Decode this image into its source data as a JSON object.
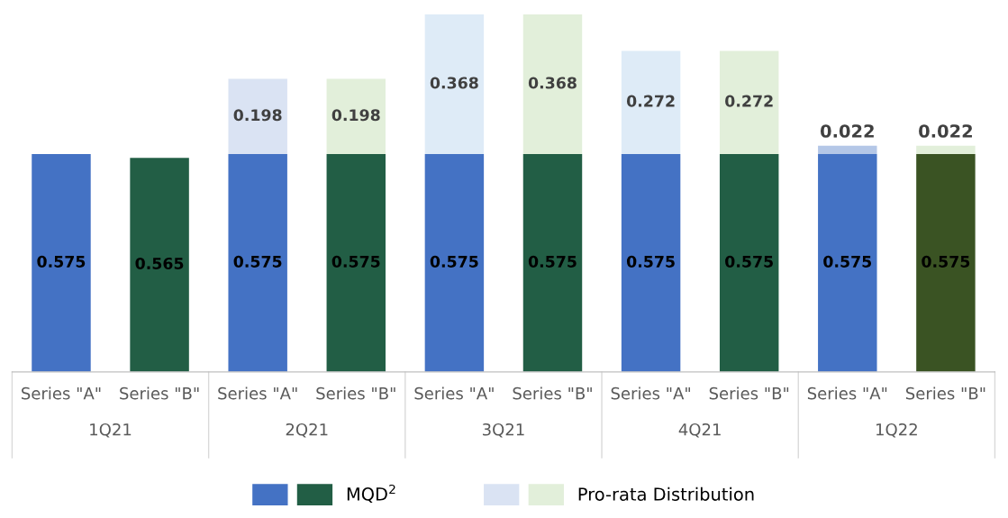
{
  "chart_data": {
    "type": "bar",
    "stacked": true,
    "data_labels": true,
    "legend": "bottom",
    "grid": false,
    "categories": [
      "Series \"A\"",
      "Series \"B\"",
      "Series \"A\"",
      "Series \"B\"",
      "Series \"A\"",
      "Series \"B\"",
      "Series \"A\"",
      "Series \"B\"",
      "Series \"A\"",
      "Series \"B\""
    ],
    "annotations": [
      "1Q21",
      "2Q21",
      "3Q21",
      "4Q21",
      "1Q22"
    ],
    "series": [
      {
        "name": "MQD$^{2}$",
        "colors": [
          "#4472c4",
          "#225e45",
          "#4472c4",
          "#225e45",
          "#4472c4",
          "#225e45",
          "#4472c4",
          "#225e45",
          "#4472c4",
          "#3a5323"
        ],
        "values": [
          0.575,
          0.565,
          0.575,
          0.575,
          0.575,
          0.575,
          0.575,
          0.575,
          0.575,
          0.575
        ]
      },
      {
        "name": "Pro-rata Distribution",
        "colors": [
          "#dae3f3",
          "#e2efda",
          "#dae3f3",
          "#e2efda",
          "#deebf7",
          "#e2efda",
          "#deebf7",
          "#e2efda",
          "#b4c7e7",
          "#e2efda"
        ],
        "values": [
          null,
          null,
          0.198,
          0.198,
          0.368,
          0.368,
          0.272,
          0.272,
          0.022,
          0.022
        ]
      }
    ]
  }
}
